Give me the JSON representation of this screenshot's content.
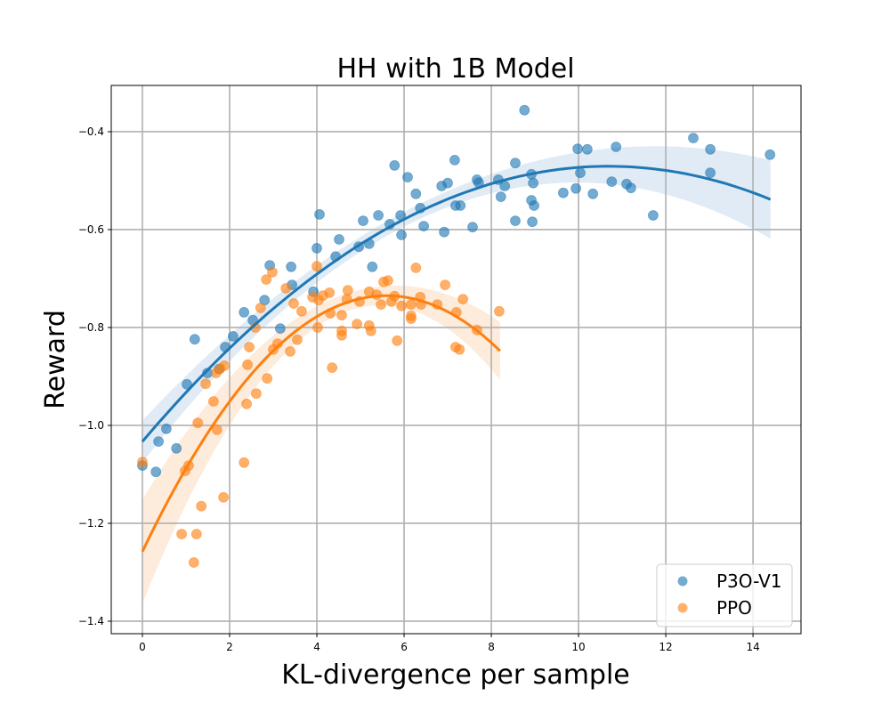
{
  "chart_data": {
    "type": "scatter",
    "title": "HH with 1B Model",
    "xlabel": "KL-divergence per sample",
    "ylabel": "Reward",
    "xlim": [
      -0.714,
      15.1
    ],
    "ylim": [
      -1.4255,
      -0.3055
    ],
    "xticks": [
      0,
      2,
      4,
      6,
      8,
      10,
      12,
      14
    ],
    "xtick_labels": [
      "0",
      "2",
      "4",
      "6",
      "8",
      "10",
      "12",
      "14"
    ],
    "yticks": [
      -1.4,
      -1.2,
      -1.0,
      -0.8,
      -0.6,
      -0.4
    ],
    "ytick_labels": [
      "−1.4",
      "−1.2",
      "−1.0",
      "−0.8",
      "−0.6",
      "−0.4"
    ],
    "grid": true,
    "legend_position": "lower-right",
    "series": [
      {
        "name": "P3O-V1",
        "color": "#1f77b4",
        "fit": {
          "type": "quadratic",
          "coef": [
            -0.00492,
            0.1052,
            -1.033
          ],
          "x_range": [
            0,
            14.4
          ],
          "ci_halfwidth": {
            "min": 0.015,
            "center": 5.7,
            "k": 0.00086
          }
        },
        "points": [
          [
            0.0,
            -1.082
          ],
          [
            0.31,
            -1.095
          ],
          [
            0.37,
            -1.033
          ],
          [
            0.55,
            -1.007
          ],
          [
            0.78,
            -1.047
          ],
          [
            1.02,
            -0.916
          ],
          [
            1.2,
            -0.824
          ],
          [
            1.49,
            -0.893
          ],
          [
            1.76,
            -0.885
          ],
          [
            1.9,
            -0.84
          ],
          [
            2.08,
            -0.818
          ],
          [
            2.33,
            -0.769
          ],
          [
            2.53,
            -0.785
          ],
          [
            2.8,
            -0.744
          ],
          [
            2.92,
            -0.673
          ],
          [
            3.16,
            -0.802
          ],
          [
            3.41,
            -0.676
          ],
          [
            3.43,
            -0.713
          ],
          [
            3.92,
            -0.727
          ],
          [
            4.0,
            -0.638
          ],
          [
            4.06,
            -0.569
          ],
          [
            4.43,
            -0.655
          ],
          [
            4.51,
            -0.62
          ],
          [
            4.96,
            -0.635
          ],
          [
            5.06,
            -0.582
          ],
          [
            5.2,
            -0.629
          ],
          [
            5.27,
            -0.676
          ],
          [
            5.41,
            -0.571
          ],
          [
            5.67,
            -0.589
          ],
          [
            5.78,
            -0.469
          ],
          [
            5.92,
            -0.571
          ],
          [
            5.94,
            -0.611
          ],
          [
            6.08,
            -0.493
          ],
          [
            6.27,
            -0.527
          ],
          [
            6.37,
            -0.556
          ],
          [
            6.45,
            -0.593
          ],
          [
            6.86,
            -0.511
          ],
          [
            6.92,
            -0.605
          ],
          [
            7.0,
            -0.505
          ],
          [
            7.16,
            -0.458
          ],
          [
            7.18,
            -0.551
          ],
          [
            7.29,
            -0.551
          ],
          [
            7.57,
            -0.595
          ],
          [
            7.67,
            -0.498
          ],
          [
            7.71,
            -0.504
          ],
          [
            8.16,
            -0.498
          ],
          [
            8.22,
            -0.533
          ],
          [
            8.31,
            -0.511
          ],
          [
            8.55,
            -0.464
          ],
          [
            8.55,
            -0.582
          ],
          [
            8.76,
            -0.356
          ],
          [
            8.92,
            -0.487
          ],
          [
            8.92,
            -0.54
          ],
          [
            8.94,
            -0.584
          ],
          [
            8.96,
            -0.505
          ],
          [
            8.98,
            -0.551
          ],
          [
            9.65,
            -0.525
          ],
          [
            9.94,
            -0.516
          ],
          [
            9.98,
            -0.435
          ],
          [
            10.04,
            -0.484
          ],
          [
            10.2,
            -0.436
          ],
          [
            10.33,
            -0.527
          ],
          [
            10.76,
            -0.502
          ],
          [
            10.86,
            -0.431
          ],
          [
            11.1,
            -0.507
          ],
          [
            11.2,
            -0.515
          ],
          [
            11.71,
            -0.571
          ],
          [
            12.63,
            -0.413
          ],
          [
            13.02,
            -0.436
          ],
          [
            13.02,
            -0.484
          ],
          [
            14.39,
            -0.447
          ]
        ]
      },
      {
        "name": "PPO",
        "color": "#ff7f0e",
        "fit": {
          "type": "quadratic",
          "coef": [
            -0.01668,
            0.1868,
            -1.258
          ],
          "x_range": [
            0,
            8.2
          ],
          "ci_halfwidth": {
            "min": 0.018,
            "center": 4.87,
            "k": 0.00371
          }
        },
        "points": [
          [
            0.0,
            -1.075
          ],
          [
            0.9,
            -1.222
          ],
          [
            0.98,
            -1.093
          ],
          [
            1.06,
            -1.082
          ],
          [
            1.18,
            -1.28
          ],
          [
            1.24,
            -1.222
          ],
          [
            1.27,
            -0.995
          ],
          [
            1.35,
            -1.165
          ],
          [
            1.45,
            -0.915
          ],
          [
            1.63,
            -0.951
          ],
          [
            1.69,
            -0.893
          ],
          [
            1.71,
            -1.009
          ],
          [
            1.78,
            -0.884
          ],
          [
            1.88,
            -0.878
          ],
          [
            1.86,
            -1.147
          ],
          [
            2.33,
            -1.076
          ],
          [
            2.39,
            -0.956
          ],
          [
            2.41,
            -0.876
          ],
          [
            2.45,
            -0.84
          ],
          [
            2.59,
            -0.8
          ],
          [
            2.61,
            -0.935
          ],
          [
            2.71,
            -0.76
          ],
          [
            2.84,
            -0.702
          ],
          [
            2.86,
            -0.904
          ],
          [
            2.98,
            -0.687
          ],
          [
            3.0,
            -0.845
          ],
          [
            3.1,
            -0.833
          ],
          [
            3.29,
            -0.72
          ],
          [
            3.39,
            -0.849
          ],
          [
            3.47,
            -0.751
          ],
          [
            3.55,
            -0.825
          ],
          [
            3.65,
            -0.767
          ],
          [
            3.9,
            -0.738
          ],
          [
            4.0,
            -0.675
          ],
          [
            4.02,
            -0.8
          ],
          [
            4.04,
            -0.744
          ],
          [
            4.14,
            -0.735
          ],
          [
            4.29,
            -0.729
          ],
          [
            4.31,
            -0.771
          ],
          [
            4.35,
            -0.882
          ],
          [
            4.57,
            -0.775
          ],
          [
            4.57,
            -0.807
          ],
          [
            4.57,
            -0.816
          ],
          [
            4.69,
            -0.742
          ],
          [
            4.71,
            -0.724
          ],
          [
            4.92,
            -0.793
          ],
          [
            4.98,
            -0.747
          ],
          [
            5.2,
            -0.727
          ],
          [
            5.2,
            -0.796
          ],
          [
            5.24,
            -0.807
          ],
          [
            5.37,
            -0.733
          ],
          [
            5.47,
            -0.753
          ],
          [
            5.53,
            -0.707
          ],
          [
            5.63,
            -0.704
          ],
          [
            5.71,
            -0.747
          ],
          [
            5.78,
            -0.736
          ],
          [
            5.84,
            -0.827
          ],
          [
            5.94,
            -0.756
          ],
          [
            6.16,
            -0.753
          ],
          [
            6.16,
            -0.776
          ],
          [
            6.16,
            -0.782
          ],
          [
            6.27,
            -0.678
          ],
          [
            6.37,
            -0.738
          ],
          [
            6.39,
            -0.753
          ],
          [
            6.76,
            -0.753
          ],
          [
            6.94,
            -0.713
          ],
          [
            7.2,
            -0.769
          ],
          [
            7.18,
            -0.84
          ],
          [
            7.27,
            -0.845
          ],
          [
            7.35,
            -0.742
          ],
          [
            7.67,
            -0.805
          ],
          [
            8.18,
            -0.767
          ]
        ]
      }
    ]
  }
}
